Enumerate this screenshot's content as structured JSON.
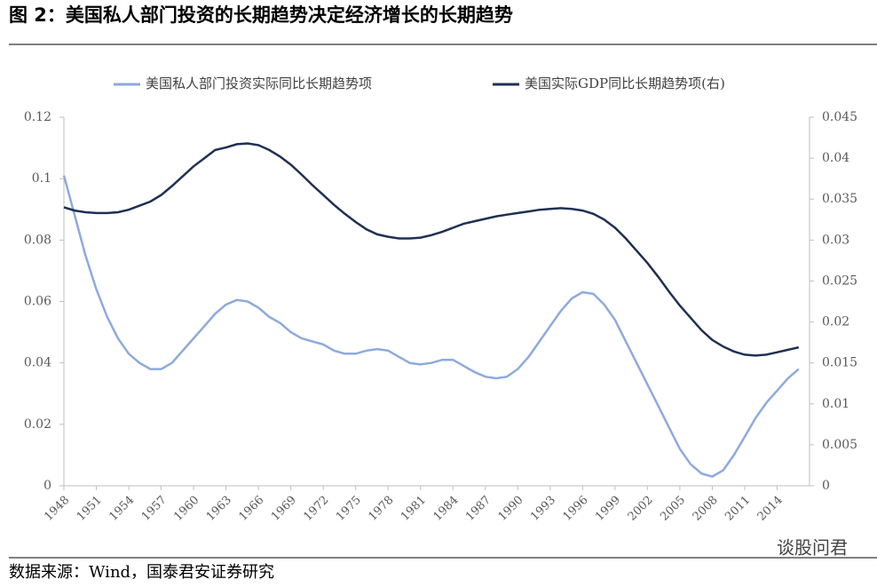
{
  "chart_data": {
    "type": "line",
    "title": "图 2：美国私人部门投资的长期趋势决定经济增长的长期趋势",
    "source": "数据来源：Wind，国泰君安证券研究",
    "watermark": "谈股问君",
    "x": [
      1948,
      1949,
      1950,
      1951,
      1952,
      1953,
      1954,
      1955,
      1956,
      1957,
      1958,
      1959,
      1960,
      1961,
      1962,
      1963,
      1964,
      1965,
      1966,
      1967,
      1968,
      1969,
      1970,
      1971,
      1972,
      1973,
      1974,
      1975,
      1976,
      1977,
      1978,
      1979,
      1980,
      1981,
      1982,
      1983,
      1984,
      1985,
      1986,
      1987,
      1988,
      1989,
      1990,
      1991,
      1992,
      1993,
      1994,
      1995,
      1996,
      1997,
      1998,
      1999,
      2000,
      2001,
      2002,
      2003,
      2004,
      2005,
      2006,
      2007,
      2008,
      2009,
      2010,
      2011,
      2012,
      2013,
      2014,
      2015,
      2016
    ],
    "xlim": [
      1948,
      2017
    ],
    "xticks": [
      1948,
      1951,
      1954,
      1957,
      1960,
      1963,
      1966,
      1969,
      1972,
      1975,
      1978,
      1981,
      1984,
      1987,
      1990,
      1993,
      1996,
      1999,
      2002,
      2005,
      2008,
      2011,
      2014
    ],
    "ylim": [
      0,
      0.12
    ],
    "yticks": [
      0,
      0.02,
      0.04,
      0.06,
      0.08,
      0.1,
      0.12
    ],
    "y2lim": [
      0,
      0.045
    ],
    "y2ticks": [
      0,
      0.005,
      0.01,
      0.015,
      0.02,
      0.025,
      0.03,
      0.035,
      0.04,
      0.045
    ],
    "grid": false,
    "legend": "top",
    "series": [
      {
        "name": "美国私人部门投资实际同比长期趋势项",
        "color": "#8eaadb",
        "axis": "y",
        "values": [
          0.101,
          0.088,
          0.075,
          0.064,
          0.055,
          0.048,
          0.043,
          0.04,
          0.038,
          0.038,
          0.04,
          0.044,
          0.048,
          0.052,
          0.056,
          0.059,
          0.0605,
          0.06,
          0.058,
          0.055,
          0.053,
          0.05,
          0.048,
          0.047,
          0.046,
          0.044,
          0.043,
          0.043,
          0.044,
          0.0445,
          0.044,
          0.042,
          0.04,
          0.0395,
          0.04,
          0.041,
          0.041,
          0.039,
          0.037,
          0.0355,
          0.035,
          0.0355,
          0.038,
          0.042,
          0.047,
          0.052,
          0.057,
          0.061,
          0.063,
          0.0625,
          0.059,
          0.054,
          0.047,
          0.04,
          0.033,
          0.026,
          0.019,
          0.012,
          0.007,
          0.004,
          0.003,
          0.005,
          0.01,
          0.016,
          0.022,
          0.027,
          0.031,
          0.035,
          0.038
        ]
      },
      {
        "name": "美国实际GDP同比长期趋势项(右)",
        "color": "#1f3052",
        "axis": "y2",
        "values": [
          0.034,
          0.0336,
          0.0334,
          0.0333,
          0.0333,
          0.0334,
          0.0337,
          0.0342,
          0.0347,
          0.0355,
          0.0366,
          0.0378,
          0.039,
          0.04,
          0.041,
          0.0413,
          0.0417,
          0.0418,
          0.0416,
          0.041,
          0.0402,
          0.0392,
          0.038,
          0.0367,
          0.0355,
          0.0343,
          0.0332,
          0.0322,
          0.0313,
          0.0307,
          0.0304,
          0.0302,
          0.0302,
          0.0303,
          0.0306,
          0.031,
          0.0315,
          0.032,
          0.0323,
          0.0326,
          0.0329,
          0.0331,
          0.0333,
          0.0335,
          0.0337,
          0.0338,
          0.0339,
          0.0338,
          0.0336,
          0.0332,
          0.0325,
          0.0315,
          0.0302,
          0.0287,
          0.0272,
          0.0255,
          0.0237,
          0.022,
          0.0205,
          0.019,
          0.0178,
          0.017,
          0.0164,
          0.016,
          0.0159,
          0.016,
          0.0163,
          0.0166,
          0.0169
        ]
      }
    ]
  }
}
